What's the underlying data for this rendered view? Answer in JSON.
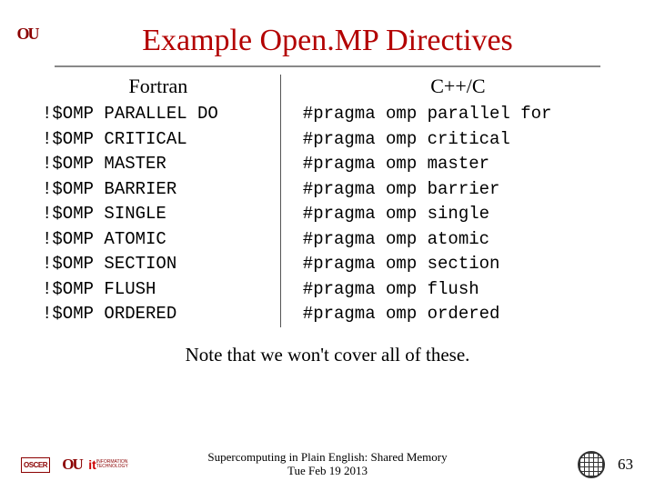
{
  "title": "Example Open.MP Directives",
  "columns": {
    "left": {
      "header": "Fortran",
      "code": "!$OMP PARALLEL DO\n!$OMP CRITICAL\n!$OMP MASTER\n!$OMP BARRIER\n!$OMP SINGLE\n!$OMP ATOMIC\n!$OMP SECTION\n!$OMP FLUSH\n!$OMP ORDERED"
    },
    "right": {
      "header": "C++/C",
      "code": "#pragma omp parallel for\n#pragma omp critical\n#pragma omp master\n#pragma omp barrier\n#pragma omp single\n#pragma omp atomic\n#pragma omp section\n#pragma omp flush\n#pragma omp ordered"
    }
  },
  "note": "Note that we won't cover all of these.",
  "footer": {
    "line1": "Supercomputing in Plain English: Shared Memory",
    "line2": "Tue Feb 19 2013",
    "page": "63",
    "oscer": "OSCER",
    "ou": "OU",
    "it_big": "it",
    "it_small": "INFORMATION\nTECHNOLOGY"
  },
  "colors": {
    "title": "#b30000",
    "ou": "#8b0000",
    "text": "#000000",
    "rule": "#888888"
  }
}
